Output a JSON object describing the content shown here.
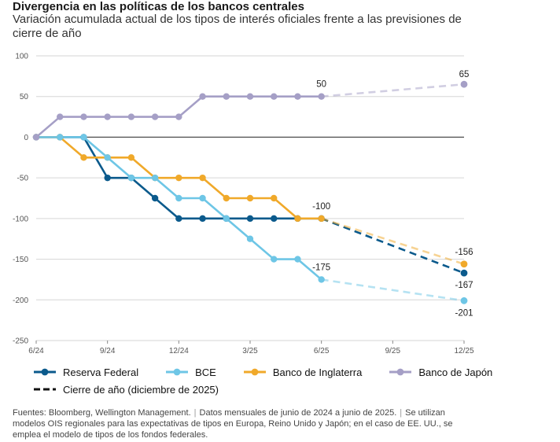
{
  "title": "Divergencia en las políticas de los bancos centrales",
  "subtitle": "Variación acumulada actual de los tipos de interés oficiales frente a las previsiones de cierre de año",
  "footer": {
    "sources": "Fuentes: Bloomberg, Wellington Management.",
    "period": "Datos mensuales de junio de 2024 a junio de 2025.",
    "note": "Se utilizan modelos OIS regionales para las expectativas de tipos en Europa, Reino Unido y Japón; en el caso de EE. UU., se emplea el modelo de tipos de los fondos federales."
  },
  "legend": {
    "forecast_label": "Cierre de año (diciembre de 2025)"
  },
  "chart_data": {
    "type": "line",
    "x": [
      "6/24",
      "7/24",
      "8/24",
      "9/24",
      "10/24",
      "11/24",
      "12/24",
      "1/25",
      "2/25",
      "3/25",
      "4/25",
      "5/25",
      "6/25"
    ],
    "x_tick_labels": [
      "6/24",
      "9/24",
      "12/24",
      "3/25",
      "6/25",
      "9/25",
      "12/25"
    ],
    "y_tick_labels": [
      "100",
      "50",
      "0",
      "-50",
      "-100",
      "-150",
      "-200",
      "-250"
    ],
    "ylim": [
      -250,
      100
    ],
    "forecast_x": "12/25",
    "grid": "horizontal",
    "series": [
      {
        "name": "Reserva Federal",
        "color": "#0b5a8c",
        "values": [
          0,
          0,
          0,
          -50,
          -50,
          -75,
          -100,
          -100,
          -100,
          -100,
          -100,
          -100,
          -100
        ],
        "forecast": -167,
        "forecast_label": "-167"
      },
      {
        "name": "BCE",
        "color": "#6ec6e6",
        "values": [
          0,
          0,
          0,
          -25,
          -50,
          -50,
          -75,
          -75,
          -100,
          -125,
          -150,
          -150,
          -175
        ],
        "forecast": -201,
        "forecast_label": "-201",
        "end_label": "-175"
      },
      {
        "name": "Banco de Inglaterra",
        "color": "#f0a92a",
        "values": [
          0,
          0,
          -25,
          -25,
          -25,
          -50,
          -50,
          -50,
          -75,
          -75,
          -75,
          -100,
          -100
        ],
        "forecast": -156,
        "forecast_label": "-156",
        "end_label": "-100"
      },
      {
        "name": "Banco de Japón",
        "color": "#a59fc6",
        "values": [
          0,
          25,
          25,
          25,
          25,
          25,
          25,
          50,
          50,
          50,
          50,
          50,
          50
        ],
        "forecast": 65,
        "forecast_label": "65",
        "end_label": "50"
      }
    ]
  }
}
